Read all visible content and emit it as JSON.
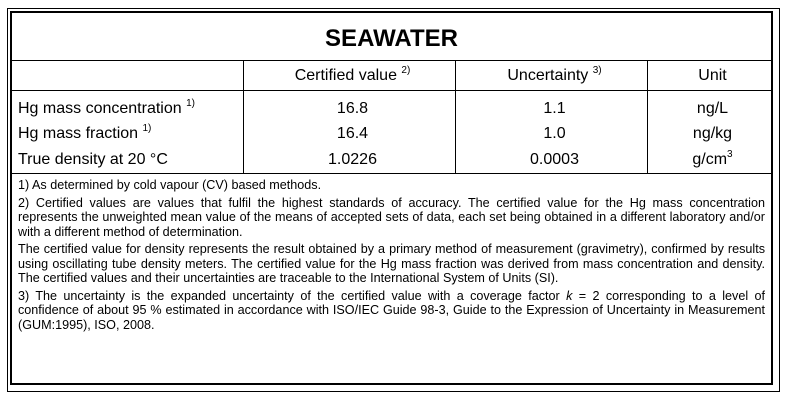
{
  "title": "SEAWATER",
  "table": {
    "header": [
      {
        "text": ""
      },
      {
        "text": "Certified value ",
        "sup": "2)"
      },
      {
        "text": "Uncertainty ",
        "sup": "3)"
      },
      {
        "text": "Unit"
      }
    ],
    "rows": [
      [
        {
          "text": "Hg mass concentration ",
          "sup": "1)"
        },
        {
          "text": "16.8"
        },
        {
          "text": "1.1"
        },
        {
          "text": "ng/L"
        }
      ],
      [
        {
          "text": "Hg mass fraction ",
          "sup": "1)"
        },
        {
          "text": "16.4"
        },
        {
          "text": "1.0"
        },
        {
          "text": "ng/kg"
        }
      ],
      [
        {
          "text": "True density at 20 °C"
        },
        {
          "text": "1.0226"
        },
        {
          "text": "0.0003"
        },
        {
          "text": "g/cm",
          "sup": "3"
        }
      ]
    ]
  },
  "notes": [
    {
      "text": "1) As determined by cold vapour (CV) based methods."
    },
    {
      "text": "2) Certified values are values that fulfil the highest standards of accuracy. The certified value for the Hg mass concentration represents the unweighted mean value of the means of accepted sets of data, each set being obtained in a different laboratory and/or with a different method of determination."
    },
    {
      "text": "The certified value for density represents the result obtained by a primary method of measurement (gravimetry), confirmed by results using oscillating tube density meters. The certified value for the Hg mass fraction was derived from mass concentration and density.  The certified values and their uncertainties are traceable to the International System of Units (SI)."
    },
    {
      "text": "3) The uncertainty is the expanded uncertainty of the certified value with a coverage factor ",
      "italic": "k",
      "after": " = 2 corresponding to a level of confidence of about 95 % estimated in accordance with ISO/IEC Guide 98-3, Guide to the Expression of Uncertainty in Measurement (GUM:1995), ISO, 2008."
    }
  ]
}
